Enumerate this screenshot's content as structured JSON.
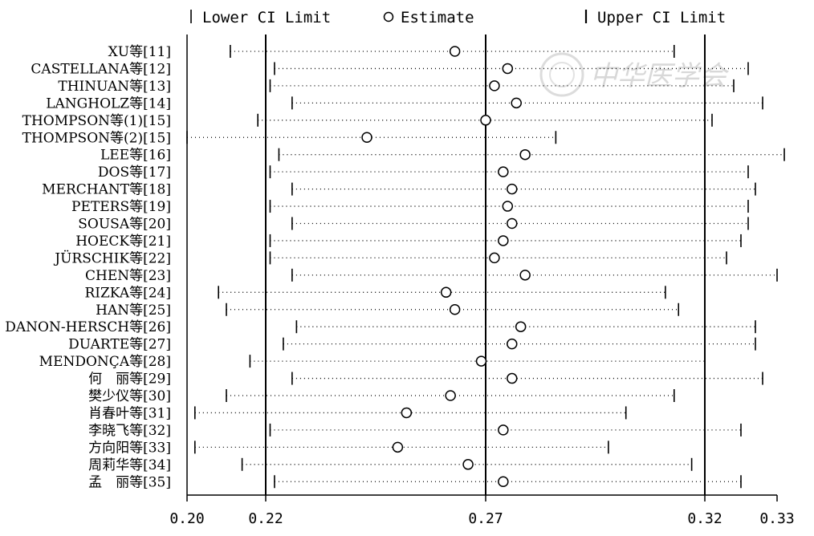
{
  "legend": {
    "lower": "Lower CI Limit",
    "estimate": "Estimate",
    "upper": "Upper CI Limit"
  },
  "watermark": "中华医学会",
  "chart_data": {
    "type": "forest",
    "xlim": [
      0.2,
      0.33
    ],
    "x_ticks": [
      {
        "value": 0.2,
        "label": "0.20"
      },
      {
        "value": 0.22,
        "label": "0.22"
      },
      {
        "value": 0.27,
        "label": "0.27"
      },
      {
        "value": 0.32,
        "label": "0.32"
      },
      {
        "value": 0.33,
        "label": "0.33"
      }
    ],
    "reference_lines": [
      0.22,
      0.27,
      0.32
    ],
    "studies": [
      {
        "label": "XU等[11]",
        "lower": 0.211,
        "estimate": 0.263,
        "upper": 0.313
      },
      {
        "label": "CASTELLANA等[12]",
        "lower": 0.222,
        "estimate": 0.275,
        "upper": 0.326
      },
      {
        "label": "THINUAN等[13]",
        "lower": 0.221,
        "estimate": 0.272,
        "upper": 0.324
      },
      {
        "label": "LANGHOLZ等[14]",
        "lower": 0.226,
        "estimate": 0.277,
        "upper": 0.328
      },
      {
        "label": "THOMPSON等(1)[15]",
        "lower": 0.218,
        "estimate": 0.27,
        "upper": 0.321
      },
      {
        "label": "THOMPSON等(2)[15]",
        "lower": 0.2,
        "estimate": 0.243,
        "upper": 0.286
      },
      {
        "label": "LEE等[16]",
        "lower": 0.223,
        "estimate": 0.279,
        "upper": 0.331
      },
      {
        "label": "DOS等[17]",
        "lower": 0.221,
        "estimate": 0.274,
        "upper": 0.326
      },
      {
        "label": "MERCHANT等[18]",
        "lower": 0.226,
        "estimate": 0.276,
        "upper": 0.327
      },
      {
        "label": "PETERS等[19]",
        "lower": 0.221,
        "estimate": 0.275,
        "upper": 0.326
      },
      {
        "label": "SOUSA等[20]",
        "lower": 0.226,
        "estimate": 0.276,
        "upper": 0.326
      },
      {
        "label": "HOECK等[21]",
        "lower": 0.221,
        "estimate": 0.274,
        "upper": 0.325
      },
      {
        "label": "JÜRSCHIK等[22]",
        "lower": 0.221,
        "estimate": 0.272,
        "upper": 0.323
      },
      {
        "label": "CHEN等[23]",
        "lower": 0.226,
        "estimate": 0.279,
        "upper": 0.33
      },
      {
        "label": "RIZKA等[24]",
        "lower": 0.208,
        "estimate": 0.261,
        "upper": 0.311
      },
      {
        "label": "HAN等[25]",
        "lower": 0.21,
        "estimate": 0.263,
        "upper": 0.314
      },
      {
        "label": "DANON-HERSCH等[26]",
        "lower": 0.227,
        "estimate": 0.278,
        "upper": 0.327
      },
      {
        "label": "DUARTE等[27]",
        "lower": 0.224,
        "estimate": 0.276,
        "upper": 0.327
      },
      {
        "label": "MENDONÇA等[28]",
        "lower": 0.216,
        "estimate": 0.269,
        "upper": 0.32
      },
      {
        "label": "何　丽等[29]",
        "lower": 0.226,
        "estimate": 0.276,
        "upper": 0.328
      },
      {
        "label": "樊少仪等[30]",
        "lower": 0.21,
        "estimate": 0.262,
        "upper": 0.313
      },
      {
        "label": "肖春叶等[31]",
        "lower": 0.202,
        "estimate": 0.252,
        "upper": 0.302
      },
      {
        "label": "李晓飞等[32]",
        "lower": 0.221,
        "estimate": 0.274,
        "upper": 0.325
      },
      {
        "label": "方向阳等[33]",
        "lower": 0.202,
        "estimate": 0.25,
        "upper": 0.298
      },
      {
        "label": "周莉华等[34]",
        "lower": 0.214,
        "estimate": 0.266,
        "upper": 0.317
      },
      {
        "label": "孟　丽等[35]",
        "lower": 0.222,
        "estimate": 0.274,
        "upper": 0.325
      }
    ]
  }
}
